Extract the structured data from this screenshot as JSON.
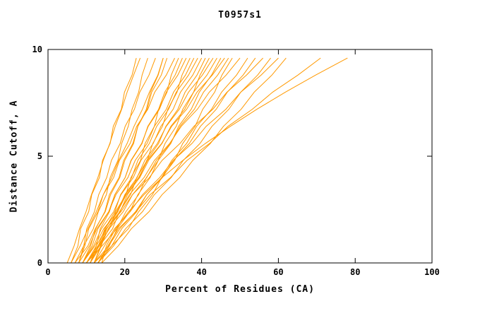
{
  "title": "T0957s1",
  "colors": {
    "curve": "#ff9900",
    "axis": "#000000",
    "background": "#ffffff"
  },
  "chart_data": {
    "type": "line",
    "title": "T0957s1",
    "xlabel": "Percent of Residues (CA)",
    "ylabel": "Distance Cutoff, A",
    "xlim": [
      0,
      100
    ],
    "ylim": [
      0,
      10
    ],
    "x_ticks": [
      0,
      20,
      40,
      60,
      80,
      100
    ],
    "y_ticks": [
      0,
      5,
      10
    ],
    "grid": false,
    "legend": false,
    "curve_color": "#ff9900",
    "y_levels": [
      0,
      0.8,
      1.6,
      2.4,
      3.2,
      4.0,
      4.8,
      5.6,
      6.4,
      7.2,
      8.0,
      8.8,
      9.6
    ],
    "series_x": [
      [
        5,
        6.8,
        8.2,
        9.9,
        11.3,
        13.0,
        14.4,
        16.1,
        17.5,
        19.2,
        20.6,
        22.3,
        24
      ],
      [
        6,
        7.8,
        8.5,
        10.6,
        11.4,
        13.4,
        14.2,
        16.2,
        17.0,
        19.1,
        19.9,
        21.9,
        23
      ],
      [
        7,
        9.3,
        11.8,
        13.1,
        15.2,
        16.2,
        18.2,
        19.2,
        20.9,
        21.9,
        23.6,
        24.5,
        26
      ],
      [
        8,
        9.3,
        10.1,
        12.1,
        13.2,
        15.3,
        16.5,
        18.8,
        20.1,
        22.5,
        23.9,
        26.3,
        28
      ],
      [
        6,
        8.4,
        10.4,
        12.6,
        14.4,
        16.6,
        18.4,
        20.6,
        22.4,
        24.6,
        26.4,
        28.6,
        30
      ],
      [
        7,
        10.4,
        12.3,
        14.9,
        16.3,
        18.7,
        20.0,
        22.3,
        23.4,
        25.6,
        26.7,
        28.7,
        30
      ],
      [
        9,
        11.1,
        12.4,
        14.8,
        16.0,
        18.5,
        19.7,
        22.1,
        23.4,
        25.8,
        27.0,
        29.5,
        31
      ],
      [
        8,
        9.6,
        10.6,
        13.0,
        14.4,
        17.1,
        18.6,
        21.4,
        23.1,
        26.0,
        27.8,
        30.8,
        33
      ],
      [
        10,
        13.0,
        16.0,
        17.6,
        20.3,
        21.6,
        24.1,
        25.3,
        27.7,
        28.8,
        31.0,
        32.1,
        34
      ],
      [
        9,
        11.5,
        13.0,
        15.8,
        17.4,
        20.1,
        21.7,
        24.5,
        26.0,
        28.8,
        30.4,
        33.1,
        35
      ],
      [
        11,
        12.6,
        13.6,
        16.0,
        17.4,
        20.1,
        21.6,
        24.4,
        26.1,
        29.0,
        30.8,
        33.8,
        36
      ],
      [
        10,
        13.4,
        16.8,
        18.6,
        21.5,
        23.1,
        25.8,
        27.3,
        29.8,
        31.2,
        33.6,
        34.9,
        37
      ],
      [
        8,
        10.8,
        12.7,
        15.8,
        17.7,
        20.8,
        22.7,
        25.8,
        27.7,
        30.8,
        32.7,
        35.8,
        38
      ],
      [
        12,
        13.7,
        14.8,
        17.4,
        18.9,
        21.8,
        23.4,
        26.4,
        28.3,
        31.4,
        33.4,
        36.6,
        39
      ],
      [
        9,
        11.9,
        13.9,
        17.1,
        19.0,
        22.2,
        24.2,
        27.4,
        29.4,
        32.6,
        34.5,
        37.7,
        40
      ],
      [
        11,
        13.8,
        15.7,
        18.8,
        20.7,
        23.8,
        25.7,
        28.8,
        30.7,
        33.8,
        35.7,
        38.8,
        41
      ],
      [
        10,
        14.1,
        17.9,
        20.3,
        23.6,
        25.6,
        28.7,
        30.5,
        33.4,
        35.1,
        37.9,
        39.6,
        42
      ],
      [
        12,
        13.9,
        15.3,
        18.2,
        20.0,
        23.2,
        25.2,
        28.5,
        30.8,
        34.2,
        36.6,
        40.2,
        43
      ],
      [
        9,
        12.2,
        14.5,
        18.1,
        20.4,
        23.9,
        26.2,
        29.7,
        32.0,
        35.6,
        37.9,
        41.4,
        44
      ],
      [
        13,
        16.0,
        18.0,
        21.3,
        23.4,
        26.6,
        28.7,
        32.0,
        34.0,
        37.3,
        39.4,
        42.6,
        45
      ],
      [
        11,
        13.1,
        14.8,
        17.9,
        20.1,
        23.6,
        25.9,
        29.6,
        32.2,
        36.1,
        38.8,
        42.8,
        46
      ],
      [
        10,
        13.4,
        15.9,
        19.6,
        22.0,
        25.7,
        28.2,
        31.9,
        34.4,
        38.1,
        40.5,
        44.2,
        47
      ],
      [
        12,
        16.6,
        20.9,
        23.6,
        27.2,
        29.6,
        33.0,
        35.1,
        38.3,
        40.3,
        43.4,
        45.3,
        48
      ],
      [
        11,
        13.3,
        15.2,
        18.7,
        21.2,
        25.0,
        27.7,
        31.7,
        34.7,
        38.9,
        42.0,
        46.4,
        50
      ],
      [
        13,
        16.6,
        19.2,
        23.1,
        25.7,
        29.6,
        32.2,
        36.1,
        38.7,
        42.6,
        45.2,
        49.1,
        52
      ],
      [
        12,
        15.8,
        18.7,
        22.8,
        25.7,
        29.8,
        32.7,
        36.8,
        39.7,
        43.8,
        46.7,
        50.8,
        54
      ],
      [
        10,
        12.6,
        15.1,
        19.0,
        22.0,
        26.4,
        29.7,
        34.4,
        38.0,
        42.9,
        46.6,
        51.7,
        56
      ],
      [
        13,
        17.1,
        20.2,
        24.6,
        27.7,
        32.1,
        35.2,
        39.6,
        42.7,
        47.1,
        50.2,
        54.6,
        58
      ],
      [
        12,
        14.7,
        17.3,
        21.4,
        24.6,
        29.1,
        32.6,
        37.5,
        41.2,
        46.3,
        50.2,
        55.5,
        60
      ],
      [
        14,
        18.3,
        21.7,
        26.3,
        29.7,
        34.3,
        37.7,
        42.3,
        45.7,
        50.3,
        53.7,
        58.3,
        62
      ],
      [
        13,
        15.6,
        18.3,
        22.9,
        26.6,
        31.9,
        36.2,
        42.1,
        46.9,
        53.2,
        58.5,
        65.1,
        71
      ],
      [
        14,
        15.2,
        17.6,
        21.0,
        25.0,
        29.7,
        35.1,
        41.0,
        47.5,
        54.4,
        61.8,
        69.7,
        78
      ]
    ]
  }
}
